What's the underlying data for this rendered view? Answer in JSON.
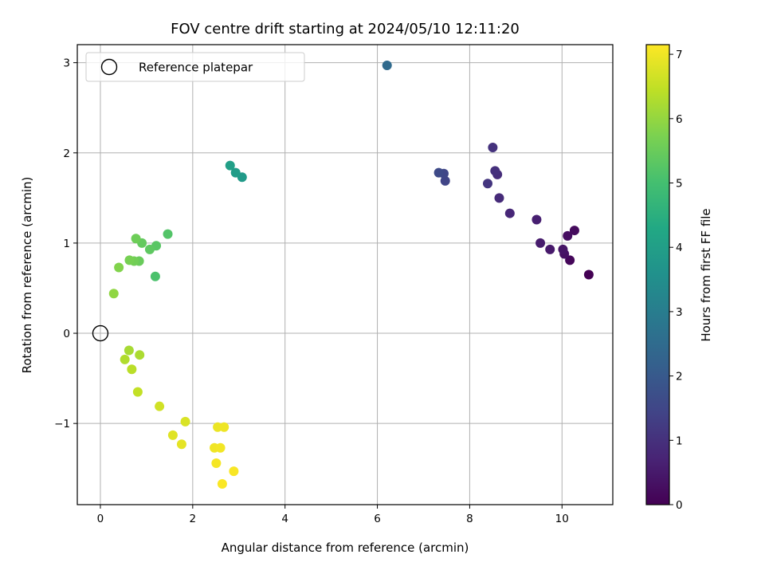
{
  "chart_data": {
    "type": "scatter",
    "title": "FOV centre drift starting at 2024/05/10 12:11:20",
    "xlabel": "Angular distance from reference (arcmin)",
    "ylabel": "Rotation from reference (arcmin)",
    "xlim": [
      -0.5,
      11.1
    ],
    "ylim": [
      -1.9,
      3.2
    ],
    "xticks": [
      0,
      2,
      4,
      6,
      8,
      10
    ],
    "yticks": [
      -1,
      0,
      1,
      2,
      3
    ],
    "ytick_labels": [
      "−1",
      "0",
      "1",
      "2",
      "3"
    ],
    "grid": true,
    "legend": {
      "location": "top-left",
      "entries": [
        {
          "label": "Reference platepar",
          "marker": "open-circle"
        }
      ]
    },
    "reference_point": {
      "x": 0,
      "y": 0
    },
    "colorbar": {
      "label": "Hours from first FF file",
      "colormap": "viridis",
      "range": [
        0,
        7.15
      ],
      "ticks": [
        0,
        1,
        2,
        3,
        4,
        5,
        6,
        7
      ]
    },
    "points": [
      {
        "x": 10.58,
        "y": 0.65,
        "hours": 0.0
      },
      {
        "x": 10.17,
        "y": 0.81,
        "hours": 0.12
      },
      {
        "x": 10.27,
        "y": 1.14,
        "hours": 0.2
      },
      {
        "x": 10.12,
        "y": 1.08,
        "hours": 0.25
      },
      {
        "x": 10.05,
        "y": 0.88,
        "hours": 0.32
      },
      {
        "x": 10.02,
        "y": 0.93,
        "hours": 0.4
      },
      {
        "x": 9.74,
        "y": 0.93,
        "hours": 0.5
      },
      {
        "x": 9.53,
        "y": 1.0,
        "hours": 0.55
      },
      {
        "x": 9.45,
        "y": 1.26,
        "hours": 0.62
      },
      {
        "x": 8.87,
        "y": 1.33,
        "hours": 0.78
      },
      {
        "x": 8.64,
        "y": 1.5,
        "hours": 0.88
      },
      {
        "x": 8.6,
        "y": 1.76,
        "hours": 0.92
      },
      {
        "x": 8.55,
        "y": 1.8,
        "hours": 0.98
      },
      {
        "x": 8.5,
        "y": 2.06,
        "hours": 1.02
      },
      {
        "x": 8.39,
        "y": 1.66,
        "hours": 1.1
      },
      {
        "x": 7.47,
        "y": 1.69,
        "hours": 1.45
      },
      {
        "x": 7.44,
        "y": 1.77,
        "hours": 1.5
      },
      {
        "x": 7.33,
        "y": 1.78,
        "hours": 1.58
      },
      {
        "x": 6.21,
        "y": 2.97,
        "hours": 2.45
      },
      {
        "x": 3.07,
        "y": 1.73,
        "hours": 3.85
      },
      {
        "x": 2.93,
        "y": 1.78,
        "hours": 3.92
      },
      {
        "x": 2.81,
        "y": 1.86,
        "hours": 4.0
      },
      {
        "x": 1.19,
        "y": 0.63,
        "hours": 5.1
      },
      {
        "x": 1.46,
        "y": 1.1,
        "hours": 5.2
      },
      {
        "x": 1.21,
        "y": 0.97,
        "hours": 5.28
      },
      {
        "x": 1.07,
        "y": 0.93,
        "hours": 5.35
      },
      {
        "x": 0.9,
        "y": 1.0,
        "hours": 5.42
      },
      {
        "x": 0.84,
        "y": 0.8,
        "hours": 5.5
      },
      {
        "x": 0.77,
        "y": 1.05,
        "hours": 5.55
      },
      {
        "x": 0.73,
        "y": 0.8,
        "hours": 5.6
      },
      {
        "x": 0.63,
        "y": 0.81,
        "hours": 5.67
      },
      {
        "x": 0.4,
        "y": 0.73,
        "hours": 5.8
      },
      {
        "x": 0.29,
        "y": 0.44,
        "hours": 5.95
      },
      {
        "x": 0.62,
        "y": -0.19,
        "hours": 6.2
      },
      {
        "x": 0.85,
        "y": -0.24,
        "hours": 6.25
      },
      {
        "x": 0.53,
        "y": -0.29,
        "hours": 6.3
      },
      {
        "x": 0.68,
        "y": -0.4,
        "hours": 6.4
      },
      {
        "x": 0.81,
        "y": -0.65,
        "hours": 6.5
      },
      {
        "x": 1.28,
        "y": -0.81,
        "hours": 6.65
      },
      {
        "x": 1.84,
        "y": -0.98,
        "hours": 6.75
      },
      {
        "x": 1.57,
        "y": -1.13,
        "hours": 6.82
      },
      {
        "x": 1.76,
        "y": -1.23,
        "hours": 6.88
      },
      {
        "x": 2.54,
        "y": -1.04,
        "hours": 6.95
      },
      {
        "x": 2.68,
        "y": -1.04,
        "hours": 6.98
      },
      {
        "x": 2.47,
        "y": -1.27,
        "hours": 7.0
      },
      {
        "x": 2.6,
        "y": -1.27,
        "hours": 7.03
      },
      {
        "x": 2.51,
        "y": -1.44,
        "hours": 7.06
      },
      {
        "x": 2.89,
        "y": -1.53,
        "hours": 7.09
      },
      {
        "x": 2.64,
        "y": -1.67,
        "hours": 7.12
      }
    ]
  }
}
